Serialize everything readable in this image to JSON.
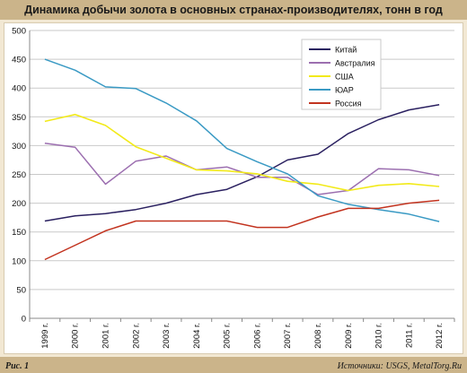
{
  "header": {
    "title": "Динамика добычи золота в основных странах-производителях, тонн в год"
  },
  "footer": {
    "figure": "Рис. 1",
    "source": "Источники: USGS, MetalTorg.Ru"
  },
  "chart_data": {
    "type": "line",
    "title": "Динамика добычи золота в основных странах-производителях, тонн в год",
    "categories": [
      "1999 г.",
      "2000 г.",
      "2001 г.",
      "2002 г.",
      "2003 г.",
      "2004 г.",
      "2005 г.",
      "2006 г.",
      "2007 г.",
      "2008 г.",
      "2009 г.",
      "2010 г.",
      "2011 г.",
      "2012 г."
    ],
    "ylim": [
      0,
      500
    ],
    "yticks": [
      0,
      50,
      100,
      150,
      200,
      250,
      300,
      350,
      400,
      450,
      500
    ],
    "grid": true,
    "legend": "top-right",
    "series": [
      {
        "name": "Китай",
        "color": "#2a2060",
        "values": [
          169,
          178,
          182,
          189,
          200,
          215,
          224,
          246,
          275,
          285,
          321,
          345,
          362,
          371
        ]
      },
      {
        "name": "Австралия",
        "color": "#9c6fb0",
        "values": [
          304,
          297,
          233,
          273,
          282,
          258,
          263,
          245,
          245,
          215,
          222,
          260,
          258,
          248
        ]
      },
      {
        "name": "США",
        "color": "#f2ea1a",
        "values": [
          342,
          354,
          335,
          298,
          278,
          258,
          256,
          251,
          238,
          233,
          222,
          231,
          234,
          229
        ]
      },
      {
        "name": "ЮАР",
        "color": "#3a9ac4",
        "values": [
          450,
          431,
          402,
          399,
          374,
          343,
          295,
          272,
          251,
          213,
          198,
          189,
          181,
          168
        ]
      },
      {
        "name": "Россия",
        "color": "#c2331f",
        "values": [
          102,
          127,
          152,
          169,
          169,
          169,
          169,
          158,
          158,
          176,
          191,
          191,
          200,
          205
        ]
      }
    ]
  }
}
